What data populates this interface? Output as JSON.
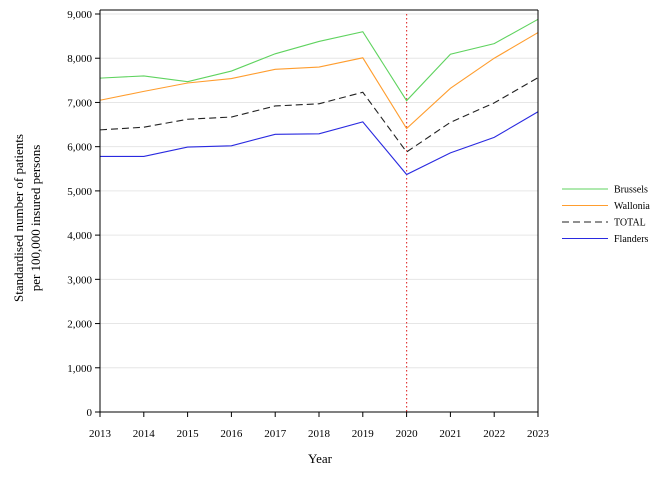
{
  "chart_data": {
    "type": "line",
    "xlabel": "Year",
    "ylabel_lines": [
      "Standardised number of patients",
      "per 100,000 insured persons"
    ],
    "x": [
      2013,
      2014,
      2015,
      2016,
      2017,
      2018,
      2019,
      2020,
      2021,
      2022,
      2023
    ],
    "ylim": [
      0,
      9000
    ],
    "yticks": [
      0,
      1000,
      2000,
      3000,
      4000,
      5000,
      6000,
      7000,
      8000,
      9000
    ],
    "ytick_labels": [
      "0",
      "1,000",
      "2,000",
      "3,000",
      "4,000",
      "5,000",
      "6,000",
      "7,000",
      "8,000",
      "9,000"
    ],
    "grid": true,
    "legend_position": "right",
    "reference_line": {
      "x": 2020,
      "color": "#e23b3b",
      "style": "dotted"
    },
    "series": [
      {
        "name": "Brussels",
        "color": "#5fd35f",
        "dash": "solid",
        "values": [
          7550,
          7600,
          7470,
          7710,
          8100,
          8380,
          8600,
          7040,
          8090,
          8330,
          8880
        ]
      },
      {
        "name": "Wallonia",
        "color": "#ff9d2e",
        "dash": "solid",
        "values": [
          7050,
          7250,
          7440,
          7540,
          7750,
          7800,
          8010,
          6410,
          7320,
          8000,
          8580
        ]
      },
      {
        "name": "TOTAL",
        "color": "#222222",
        "dash": "dashed",
        "values": [
          6380,
          6440,
          6620,
          6670,
          6920,
          6970,
          7230,
          5880,
          6550,
          6990,
          7560
        ]
      },
      {
        "name": "Flanders",
        "color": "#2a2ae0",
        "dash": "solid",
        "values": [
          5780,
          5780,
          5990,
          6020,
          6280,
          6290,
          6560,
          5370,
          5860,
          6210,
          6790
        ]
      }
    ]
  }
}
